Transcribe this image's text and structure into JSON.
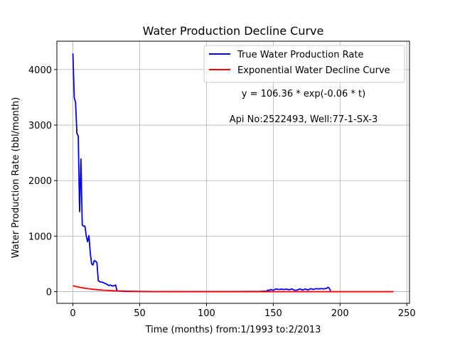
{
  "chart_data": {
    "type": "line",
    "title": "Water Production Decline Curve",
    "xlabel": "Time (months) from:1/1993 to:2/2013",
    "ylabel": "Water Production Rate (bbl/month)",
    "xlim": [
      -12,
      252
    ],
    "ylim": [
      -210,
      4510
    ],
    "xticks": [
      0,
      50,
      100,
      150,
      200,
      250
    ],
    "yticks": [
      0,
      1000,
      2000,
      3000,
      4000
    ],
    "grid": true,
    "legend_position": "top-right",
    "annotations": [
      "y = 106.36 * exp(-0.06 * t)",
      "Api No:2522493, Well:77-1-SX-3"
    ],
    "series": [
      {
        "name": "True Water Production Rate",
        "color": "#0000ff",
        "x": [
          0,
          1,
          2,
          3,
          4,
          5,
          6,
          7,
          8,
          9,
          10,
          11,
          12,
          13,
          14,
          15,
          16,
          17,
          18,
          19,
          20,
          22,
          24,
          26,
          27,
          28,
          30,
          31,
          32,
          33,
          36,
          40,
          50,
          60,
          80,
          100,
          120,
          140,
          145,
          146,
          147,
          148,
          150,
          152,
          154,
          156,
          158,
          160,
          162,
          164,
          166,
          168,
          170,
          172,
          174,
          176,
          178,
          180,
          182,
          184,
          186,
          188,
          190,
          191,
          192,
          193
        ],
        "y": [
          4290,
          3500,
          3400,
          2850,
          2800,
          1440,
          2390,
          1200,
          1180,
          1180,
          1000,
          900,
          1010,
          700,
          500,
          480,
          560,
          550,
          520,
          200,
          180,
          170,
          150,
          125,
          110,
          120,
          100,
          110,
          120,
          15,
          10,
          5,
          3,
          2,
          2,
          2,
          2,
          5,
          10,
          30,
          20,
          40,
          25,
          50,
          40,
          45,
          40,
          45,
          35,
          50,
          25,
          30,
          50,
          30,
          50,
          30,
          55,
          40,
          55,
          50,
          55,
          50,
          60,
          80,
          60,
          5
        ]
      },
      {
        "name": "Exponential Water Decline Curve",
        "color": "#ff0000",
        "function": {
          "a": 106.36,
          "b": 0.06
        },
        "x_range": [
          0,
          240
        ]
      }
    ]
  }
}
